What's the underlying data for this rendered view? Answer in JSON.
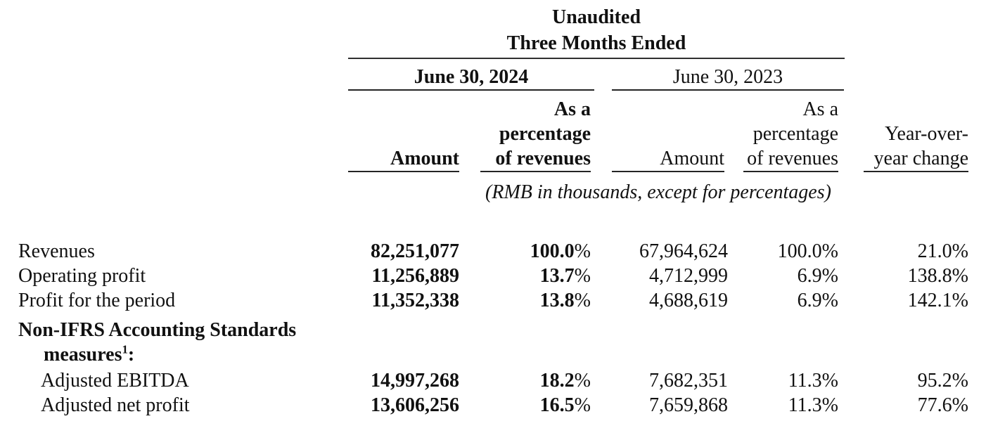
{
  "table": {
    "title": {
      "line1": "Unaudited",
      "line2": "Three Months Ended"
    },
    "periods": {
      "y2024": "June 30, 2024",
      "y2023": "June 30, 2023"
    },
    "columns": {
      "amount_2024": "Amount",
      "pct_2024": "As a\npercentage\nof revenues",
      "amount_2023": "Amount",
      "pct_2023": "As a\npercentage\nof revenues",
      "yoy": "Year-over-\nyear change"
    },
    "unit_note": "(RMB in thousands, except for percentages)",
    "rows": [
      {
        "label": "Revenues",
        "amount_2024": "82,251,077",
        "pct_2024": "100.0%",
        "amount_2023": "67,964,624",
        "pct_2023": "100.0%",
        "yoy_change": "21.0%"
      },
      {
        "label": "Operating profit",
        "amount_2024": "11,256,889",
        "pct_2024": "13.7%",
        "amount_2023": "4,712,999",
        "pct_2023": "6.9%",
        "yoy_change": "138.8%"
      },
      {
        "label": "Profit for the period",
        "amount_2024": "11,352,338",
        "pct_2024": "13.8%",
        "amount_2023": "4,688,619",
        "pct_2023": "6.9%",
        "yoy_change": "142.1%"
      },
      {
        "section_label_line1": "Non-IFRS Accounting Standards",
        "section_label_line2": "measures",
        "footnote_marker": "1",
        "section_label_suffix": ":"
      },
      {
        "label": "Adjusted EBITDA",
        "amount_2024": "14,997,268",
        "pct_2024": "18.2%",
        "amount_2023": "7,682,351",
        "pct_2023": "11.3%",
        "yoy_change": "95.2%"
      },
      {
        "label": "Adjusted net profit",
        "amount_2024": "13,606,256",
        "pct_2024": "16.5%",
        "amount_2023": "7,659,868",
        "pct_2023": "11.3%",
        "yoy_change": "77.6%"
      }
    ],
    "colors": {
      "text": "#111111",
      "rule": "#2f2f2f",
      "background": "#ffffff"
    }
  }
}
